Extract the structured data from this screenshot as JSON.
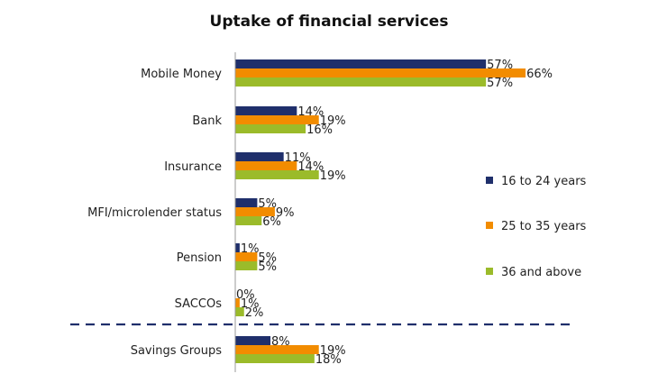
{
  "chart_data": {
    "type": "bar",
    "orientation": "horizontal",
    "title": "Uptake of financial services",
    "categories": [
      "Mobile Money",
      "Bank",
      "Insurance",
      "MFI/microlender status",
      "Pension",
      "SACCOs",
      "Savings Groups"
    ],
    "series": [
      {
        "name": "16 to 24 years",
        "color": "#1f2f6b",
        "values": [
          57,
          14,
          11,
          5,
          1,
          0,
          8
        ]
      },
      {
        "name": "25 to 35 years",
        "color": "#f28c00",
        "values": [
          66,
          19,
          14,
          9,
          5,
          1,
          19
        ]
      },
      {
        "name": "36 and above",
        "color": "#9bbb2a",
        "values": [
          57,
          16,
          19,
          6,
          5,
          2,
          18
        ]
      }
    ],
    "value_suffix": "%",
    "xlim": [
      0,
      70
    ],
    "legend_position": "right",
    "separator": {
      "style": "dashed",
      "color": "#1f2f6b",
      "between_categories": [
        "SACCOs",
        "Savings Groups"
      ]
    }
  }
}
